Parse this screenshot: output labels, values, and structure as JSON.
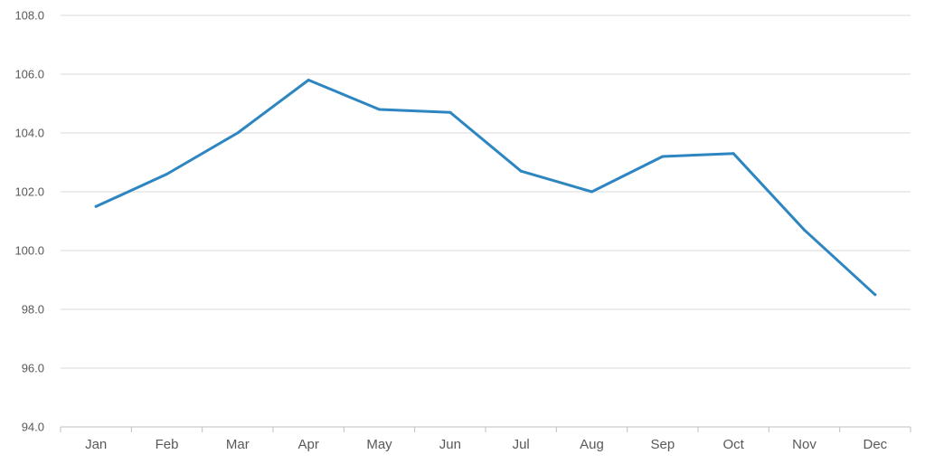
{
  "chart_data": {
    "type": "line",
    "title": "",
    "xlabel": "",
    "ylabel": "",
    "categories": [
      "Jan",
      "Feb",
      "Mar",
      "Apr",
      "May",
      "Jun",
      "Jul",
      "Aug",
      "Sep",
      "Oct",
      "Nov",
      "Dec"
    ],
    "series": [
      {
        "values": [
          101.5,
          102.6,
          104.0,
          105.8,
          104.8,
          104.7,
          102.7,
          102.0,
          103.2,
          103.3,
          100.7,
          98.5
        ]
      }
    ],
    "ylim": [
      94.0,
      108.0
    ],
    "yticks": [
      "94.0",
      "96.0",
      "98.0",
      "100.0",
      "102.0",
      "104.0",
      "106.0",
      "108.0"
    ],
    "grid": "horizontal",
    "legend": "none",
    "colors": {
      "line": "#2e86c1",
      "grid": "#d9d9d9",
      "axis": "#bfbfbf"
    }
  }
}
